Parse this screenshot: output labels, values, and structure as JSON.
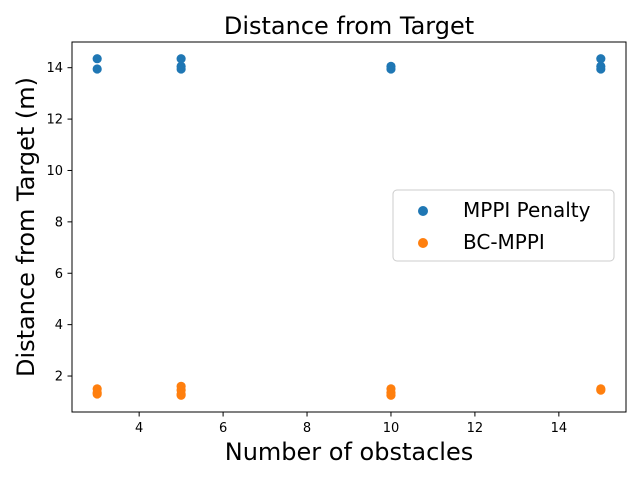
{
  "chart_data": {
    "type": "scatter",
    "title": "Distance from Target",
    "xlabel": "Number of obstacles",
    "ylabel": "Distance from Target (m)",
    "xlim": [
      2.4,
      15.6
    ],
    "ylim": [
      0.6,
      15.0
    ],
    "xticks": [
      4,
      6,
      8,
      10,
      12,
      14
    ],
    "yticks": [
      2,
      4,
      6,
      8,
      10,
      12,
      14
    ],
    "xtick_labels": [
      "4",
      "6",
      "8",
      "10",
      "12",
      "14"
    ],
    "ytick_labels": [
      "2",
      "4",
      "6",
      "8",
      "10",
      "12",
      "14"
    ],
    "grid": false,
    "legend_position": "center-right",
    "series": [
      {
        "name": "MPPI Penalty",
        "color": "#1f77b4",
        "points": [
          {
            "x": 3,
            "y": 14.35
          },
          {
            "x": 3,
            "y": 13.95
          },
          {
            "x": 5,
            "y": 14.35
          },
          {
            "x": 5,
            "y": 14.05
          },
          {
            "x": 5,
            "y": 13.95
          },
          {
            "x": 10,
            "y": 14.05
          },
          {
            "x": 10,
            "y": 13.95
          },
          {
            "x": 15,
            "y": 14.35
          },
          {
            "x": 15,
            "y": 14.05
          },
          {
            "x": 15,
            "y": 13.95
          }
        ]
      },
      {
        "name": "BC-MPPI",
        "color": "#ff7f0e",
        "points": [
          {
            "x": 3,
            "y": 1.5
          },
          {
            "x": 3,
            "y": 1.35
          },
          {
            "x": 3,
            "y": 1.3
          },
          {
            "x": 5,
            "y": 1.6
          },
          {
            "x": 5,
            "y": 1.45
          },
          {
            "x": 5,
            "y": 1.3
          },
          {
            "x": 5,
            "y": 1.25
          },
          {
            "x": 10,
            "y": 1.5
          },
          {
            "x": 10,
            "y": 1.35
          },
          {
            "x": 10,
            "y": 1.25
          },
          {
            "x": 15,
            "y": 1.5
          },
          {
            "x": 15,
            "y": 1.45
          }
        ]
      }
    ]
  }
}
